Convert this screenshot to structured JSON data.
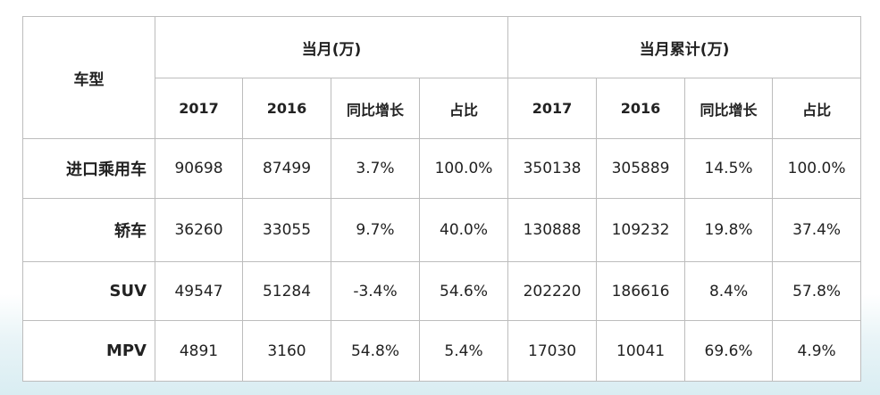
{
  "table": {
    "header": {
      "type_label": "车型",
      "group_month": "当月(万)",
      "group_cumulative": "当月累计(万)",
      "columns": [
        "2017",
        "2016",
        "同比增长",
        "占比",
        "2017",
        "2016",
        "同比增长",
        "占比"
      ]
    },
    "rows": [
      {
        "label": "进口乘用车",
        "cells": [
          "90698",
          "87499",
          "3.7%",
          "100.0%",
          "350138",
          "305889",
          "14.5%",
          "100.0%"
        ]
      },
      {
        "label": "轿车",
        "cells": [
          "36260",
          "33055",
          "9.7%",
          "40.0%",
          "130888",
          "109232",
          "19.8%",
          "37.4%"
        ]
      },
      {
        "label": "SUV",
        "cells": [
          "49547",
          "51284",
          "-3.4%",
          "54.6%",
          "202220",
          "186616",
          "8.4%",
          "57.8%"
        ]
      },
      {
        "label": "MPV",
        "cells": [
          "4891",
          "3160",
          "54.8%",
          "5.4%",
          "17030",
          "10041",
          "69.6%",
          "4.9%"
        ]
      }
    ]
  }
}
